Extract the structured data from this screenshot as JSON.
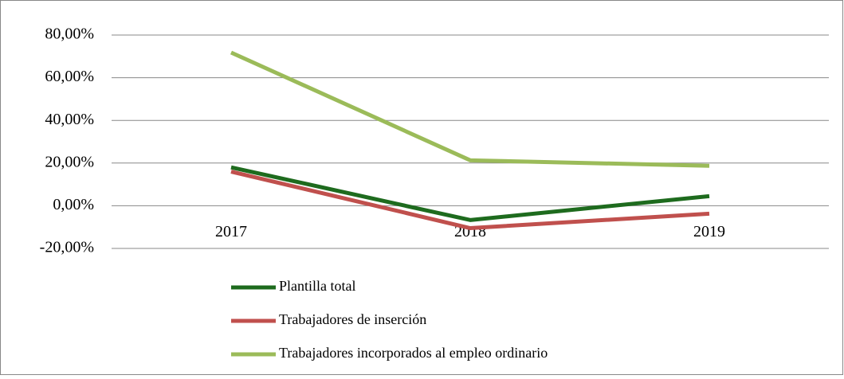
{
  "chart_data": {
    "type": "line",
    "categories": [
      "2017",
      "2018",
      "2019"
    ],
    "series": [
      {
        "name": "Plantilla total",
        "color": "#1e6b1e",
        "values": [
          18,
          -6.7,
          4.5
        ]
      },
      {
        "name": "Trabajadores de inserción",
        "color": "#c0504d",
        "values": [
          16,
          -10.5,
          -3.7
        ]
      },
      {
        "name": "Trabajadores incorporados al empleo ordinario",
        "color": "#9bbb59",
        "values": [
          71.8,
          21.3,
          18.7
        ]
      }
    ],
    "ylim": [
      -20,
      80
    ],
    "yticks": [
      {
        "value": -20,
        "label": "-20,00%"
      },
      {
        "value": 0,
        "label": "0,00%"
      },
      {
        "value": 20,
        "label": "20,00%"
      },
      {
        "value": 40,
        "label": "40,00%"
      },
      {
        "value": 60,
        "label": "60,00%"
      },
      {
        "value": 80,
        "label": "80,00%"
      }
    ],
    "grid": true,
    "legend": "bottom"
  }
}
